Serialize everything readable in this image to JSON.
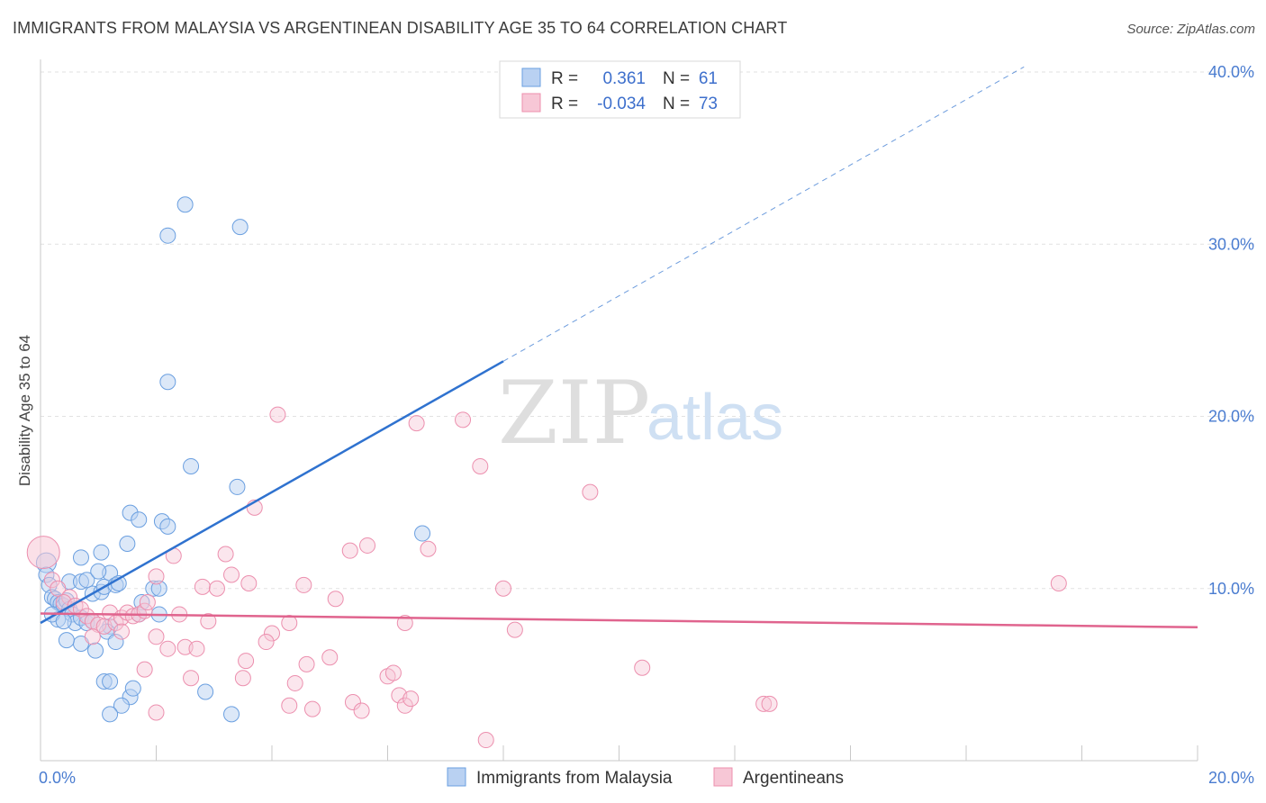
{
  "header": {
    "title": "IMMIGRANTS FROM MALAYSIA VS ARGENTINEAN DISABILITY AGE 35 TO 64 CORRELATION CHART",
    "source": "Source: ZipAtlas.com"
  },
  "watermark": {
    "zip": "ZIP",
    "atlas": "atlas"
  },
  "legend": {
    "rows": [
      {
        "r_label": "R =",
        "r_value": "0.361",
        "n_label": "N =",
        "n_value": "61"
      },
      {
        "r_label": "R =",
        "r_value": "-0.034",
        "n_label": "N =",
        "n_value": "73"
      }
    ]
  },
  "bottom_legend": {
    "items": [
      "Immigrants from Malaysia",
      "Argentineans"
    ]
  },
  "colors": {
    "series_blue": "#6a9fe0",
    "series_blue_fill": "#b9d1f2",
    "series_pink": "#ec8fae",
    "series_pink_fill": "#f7c7d6",
    "trend_blue": "#2f72cf",
    "trend_pink": "#e0648e",
    "grid": "#e2e2e2",
    "tick": "#4a7cd0"
  },
  "chart_data": {
    "type": "scatter",
    "title": "IMMIGRANTS FROM MALAYSIA VS ARGENTINEAN DISABILITY AGE 35 TO 64 CORRELATION CHART",
    "xlabel": "",
    "ylabel": "Disability Age 35 to 64",
    "xlim": [
      0,
      20
    ],
    "ylim": [
      0,
      40
    ],
    "x_tick_labels": [
      "0.0%",
      "20.0%"
    ],
    "y_ticks": [
      10,
      20,
      30,
      40
    ],
    "y_tick_labels": [
      "10.0%",
      "20.0%",
      "30.0%",
      "40.0%"
    ],
    "grid": true,
    "legend_position": "top-center",
    "series": [
      {
        "name": "Immigrants from Malaysia",
        "r": 0.361,
        "n": 61,
        "trend": {
          "x0": 0.0,
          "y0": 8.0,
          "x1": 8.0,
          "y1": 23.2,
          "dashed_to_x": 17.0,
          "dashed_to_y": 40.3
        },
        "points": [
          [
            0.1,
            11.5
          ],
          [
            0.1,
            10.8
          ],
          [
            0.15,
            10.2
          ],
          [
            0.2,
            9.5
          ],
          [
            0.25,
            9.4
          ],
          [
            0.3,
            9.2
          ],
          [
            0.35,
            9.1
          ],
          [
            0.4,
            9.0
          ],
          [
            0.45,
            9.3
          ],
          [
            0.5,
            8.8
          ],
          [
            0.55,
            8.5
          ],
          [
            0.3,
            8.2
          ],
          [
            0.6,
            8.0
          ],
          [
            0.7,
            8.3
          ],
          [
            0.8,
            8.0
          ],
          [
            0.9,
            8.1
          ],
          [
            0.2,
            8.5
          ],
          [
            0.4,
            8.1
          ],
          [
            0.5,
            10.4
          ],
          [
            0.7,
            10.4
          ],
          [
            0.9,
            9.7
          ],
          [
            1.05,
            9.8
          ],
          [
            1.1,
            10.1
          ],
          [
            1.2,
            10.9
          ],
          [
            1.3,
            10.2
          ],
          [
            0.8,
            10.5
          ],
          [
            0.7,
            11.8
          ],
          [
            1.0,
            11.0
          ],
          [
            1.05,
            12.1
          ],
          [
            1.5,
            12.6
          ],
          [
            1.55,
            14.4
          ],
          [
            1.7,
            14.0
          ],
          [
            1.35,
            10.3
          ],
          [
            1.75,
            9.2
          ],
          [
            1.95,
            10.0
          ],
          [
            2.05,
            10.0
          ],
          [
            2.05,
            8.5
          ],
          [
            1.7,
            8.5
          ],
          [
            1.2,
            7.8
          ],
          [
            1.15,
            7.5
          ],
          [
            1.3,
            6.9
          ],
          [
            0.7,
            6.8
          ],
          [
            0.45,
            7.0
          ],
          [
            0.95,
            6.4
          ],
          [
            1.1,
            4.6
          ],
          [
            1.2,
            4.6
          ],
          [
            1.55,
            3.7
          ],
          [
            1.6,
            4.2
          ],
          [
            1.4,
            3.2
          ],
          [
            1.2,
            2.7
          ],
          [
            2.1,
            13.9
          ],
          [
            2.2,
            13.6
          ],
          [
            2.6,
            17.1
          ],
          [
            3.4,
            15.9
          ],
          [
            2.2,
            22.0
          ],
          [
            2.2,
            30.5
          ],
          [
            2.5,
            32.3
          ],
          [
            3.45,
            31.0
          ],
          [
            2.85,
            4.0
          ],
          [
            3.3,
            2.7
          ],
          [
            6.6,
            13.2
          ]
        ]
      },
      {
        "name": "Argentineans",
        "r": -0.034,
        "n": 73,
        "trend": {
          "x0": 0.0,
          "y0": 8.55,
          "x1": 20.0,
          "y1": 7.75
        },
        "points": [
          [
            0.05,
            12.1
          ],
          [
            0.2,
            10.5
          ],
          [
            0.3,
            10.0
          ],
          [
            0.5,
            9.5
          ],
          [
            0.4,
            9.2
          ],
          [
            0.6,
            9.0
          ],
          [
            0.7,
            8.8
          ],
          [
            0.8,
            8.4
          ],
          [
            0.9,
            8.1
          ],
          [
            1.0,
            7.9
          ],
          [
            1.1,
            7.8
          ],
          [
            1.2,
            8.6
          ],
          [
            1.3,
            8.0
          ],
          [
            1.4,
            8.3
          ],
          [
            1.5,
            8.6
          ],
          [
            1.6,
            8.4
          ],
          [
            1.7,
            8.5
          ],
          [
            1.8,
            8.7
          ],
          [
            1.85,
            9.2
          ],
          [
            2.0,
            7.2
          ],
          [
            2.2,
            6.5
          ],
          [
            2.5,
            6.6
          ],
          [
            2.7,
            6.5
          ],
          [
            2.0,
            10.7
          ],
          [
            2.3,
            11.9
          ],
          [
            2.8,
            10.1
          ],
          [
            3.05,
            10.0
          ],
          [
            3.2,
            12.0
          ],
          [
            3.3,
            10.8
          ],
          [
            3.6,
            10.3
          ],
          [
            3.7,
            14.7
          ],
          [
            4.0,
            7.4
          ],
          [
            4.1,
            20.1
          ],
          [
            4.3,
            8.0
          ],
          [
            4.55,
            10.2
          ],
          [
            5.1,
            9.4
          ],
          [
            5.35,
            12.2
          ],
          [
            5.65,
            12.5
          ],
          [
            5.0,
            6.0
          ],
          [
            4.6,
            5.6
          ],
          [
            4.4,
            4.5
          ],
          [
            4.3,
            3.2
          ],
          [
            4.7,
            3.0
          ],
          [
            5.4,
            3.4
          ],
          [
            5.55,
            2.9
          ],
          [
            6.0,
            4.9
          ],
          [
            6.1,
            5.1
          ],
          [
            6.2,
            3.8
          ],
          [
            6.3,
            3.2
          ],
          [
            6.4,
            3.6
          ],
          [
            6.3,
            8.0
          ],
          [
            6.5,
            19.6
          ],
          [
            6.7,
            12.3
          ],
          [
            7.3,
            19.8
          ],
          [
            7.6,
            17.1
          ],
          [
            8.0,
            10.0
          ],
          [
            8.2,
            7.6
          ],
          [
            9.5,
            15.6
          ],
          [
            10.4,
            5.4
          ],
          [
            12.5,
            3.3
          ],
          [
            12.6,
            3.3
          ],
          [
            17.6,
            10.3
          ],
          [
            7.7,
            1.2
          ],
          [
            2.0,
            2.8
          ],
          [
            2.6,
            4.8
          ],
          [
            3.5,
            4.8
          ],
          [
            3.55,
            5.8
          ],
          [
            3.9,
            6.9
          ],
          [
            1.8,
            5.3
          ],
          [
            2.4,
            8.5
          ],
          [
            2.9,
            8.1
          ],
          [
            0.9,
            7.2
          ],
          [
            1.4,
            7.5
          ]
        ]
      }
    ]
  }
}
